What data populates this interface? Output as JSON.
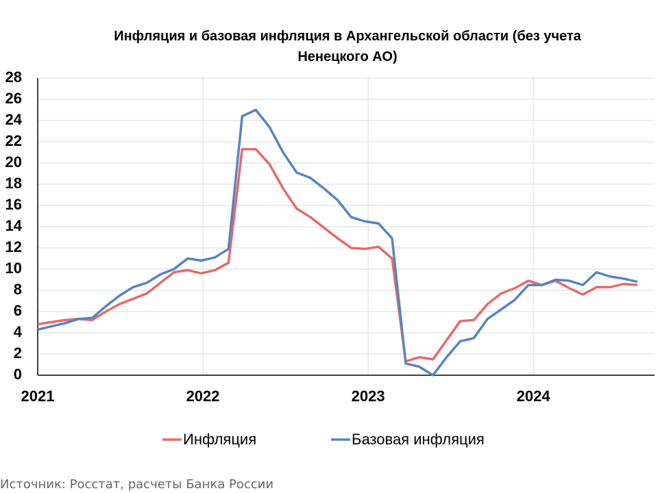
{
  "chart_data": {
    "type": "line",
    "title": "Инфляция и базовая инфляция в Архангельской области (без учета Ненецкого АО)",
    "source": "Источник: Росстат, расчеты Банка России",
    "x": [
      2021,
      2021.0825,
      2021.165,
      2021.2475,
      2021.33,
      2021.4125,
      2021.495,
      2021.5775,
      2021.66,
      2021.7425,
      2021.825,
      2021.9075,
      2021.99,
      2022.0725,
      2022.155,
      2022.2375,
      2022.32,
      2022.4025,
      2022.485,
      2022.5675,
      2022.65,
      2022.7325,
      2022.815,
      2022.8975,
      2022.98,
      2023.0625,
      2023.145,
      2023.2275,
      2023.31,
      2023.3925,
      2023.475,
      2023.5575,
      2023.64,
      2023.7225,
      2023.805,
      2023.8875,
      2023.97,
      2024.0525,
      2024.135,
      2024.2175,
      2024.3,
      2024.3825,
      2024.465,
      2024.5475,
      2024.63
    ],
    "series": [
      {
        "name": "Инфляция",
        "color": "#e8686b",
        "values": [
          4.8,
          5.0,
          5.2,
          5.3,
          5.2,
          6.0,
          6.7,
          7.2,
          7.7,
          8.7,
          9.7,
          9.9,
          9.6,
          9.9,
          10.6,
          21.3,
          21.3,
          19.9,
          17.6,
          15.7,
          14.9,
          13.9,
          12.9,
          12.0,
          11.9,
          12.1,
          11.0,
          1.3,
          1.7,
          1.5,
          3.3,
          5.1,
          5.2,
          6.7,
          7.7,
          8.2,
          8.9,
          8.5,
          8.9,
          8.2,
          7.6,
          8.3,
          8.3,
          8.6,
          8.5
        ]
      },
      {
        "name": "Базовая инфляция",
        "color": "#5585bf",
        "values": [
          4.3,
          4.6,
          4.9,
          5.3,
          5.4,
          6.5,
          7.5,
          8.3,
          8.7,
          9.5,
          10.0,
          11.0,
          10.8,
          11.1,
          11.9,
          24.4,
          25.0,
          23.4,
          21.0,
          19.1,
          18.6,
          17.6,
          16.5,
          14.9,
          14.5,
          14.3,
          12.9,
          1.1,
          0.8,
          0.0,
          1.7,
          3.2,
          3.5,
          5.3,
          6.2,
          7.1,
          8.5,
          8.5,
          9.0,
          8.9,
          8.5,
          9.7,
          9.3,
          9.1,
          8.8
        ]
      }
    ],
    "xlim": [
      2021,
      2024.63
    ],
    "xticks": [
      2021,
      2022,
      2023,
      2024
    ],
    "ylim": [
      0,
      28
    ],
    "yticks": [
      0,
      2,
      4,
      6,
      8,
      10,
      12,
      14,
      16,
      18,
      20,
      22,
      24,
      26,
      28
    ],
    "grid": true,
    "legend": "bottom"
  }
}
